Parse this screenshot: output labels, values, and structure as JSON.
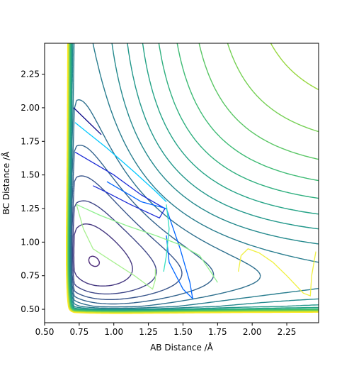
{
  "chart_data": {
    "type": "contour",
    "title": "",
    "xlabel": "AB Distance /Å",
    "ylabel": "BC Distance /Å",
    "xlim": [
      0.5,
      2.48
    ],
    "ylim": [
      0.4,
      2.48
    ],
    "xticks": [
      "0.50",
      "0.75",
      "1.00",
      "1.25",
      "1.50",
      "1.75",
      "2.00",
      "2.25"
    ],
    "xtick_values": [
      0.5,
      0.75,
      1.0,
      1.25,
      1.5,
      1.75,
      2.0,
      2.25
    ],
    "yticks": [
      "0.50",
      "0.75",
      "1.00",
      "1.25",
      "1.50",
      "1.75",
      "2.00",
      "2.25"
    ],
    "ytick_values": [
      0.5,
      0.75,
      1.0,
      1.25,
      1.5,
      1.75,
      2.0,
      2.25
    ],
    "grid": false,
    "colormap": "viridis",
    "surface": {
      "description": "LEPS-like potential energy surface for A + BC",
      "well_r0": 0.74,
      "n_levels": 20
    },
    "trajectories": [
      {
        "color": "#0d0887",
        "points": [
          [
            0.71,
            2.0
          ],
          [
            0.91,
            1.8
          ]
        ]
      },
      {
        "color": "#1b2bd6",
        "points": [
          [
            0.72,
            1.67
          ],
          [
            1.0,
            1.5
          ],
          [
            1.2,
            1.35
          ],
          [
            1.37,
            1.25
          ],
          [
            1.33,
            1.18
          ],
          [
            1.12,
            1.28
          ],
          [
            0.95,
            1.37
          ],
          [
            0.85,
            1.42
          ]
        ]
      },
      {
        "color": "#0066ff",
        "points": [
          [
            0.95,
            1.45
          ],
          [
            1.2,
            1.3
          ],
          [
            1.38,
            1.25
          ],
          [
            1.48,
            0.95
          ],
          [
            1.55,
            0.7
          ],
          [
            1.57,
            0.58
          ],
          [
            1.5,
            0.65
          ],
          [
            1.4,
            0.85
          ],
          [
            1.38,
            1.05
          ]
        ]
      },
      {
        "color": "#00c8ff",
        "points": [
          [
            0.72,
            1.89
          ],
          [
            0.95,
            1.7
          ],
          [
            1.15,
            1.52
          ],
          [
            1.3,
            1.38
          ],
          [
            1.38,
            1.3
          ]
        ]
      },
      {
        "color": "#38e0c0",
        "points": [
          [
            1.38,
            1.28
          ],
          [
            1.4,
            1.1
          ],
          [
            1.38,
            0.9
          ],
          [
            1.36,
            0.78
          ]
        ]
      },
      {
        "color": "#8ff08f",
        "points": [
          [
            0.73,
            1.28
          ],
          [
            0.9,
            1.2
          ],
          [
            1.1,
            1.12
          ],
          [
            1.3,
            1.05
          ],
          [
            1.48,
            0.98
          ],
          [
            1.62,
            0.9
          ],
          [
            1.7,
            0.78
          ],
          [
            1.75,
            0.7
          ]
        ]
      },
      {
        "color": "#a8f090",
        "points": [
          [
            0.73,
            1.28
          ],
          [
            0.78,
            1.1
          ],
          [
            0.85,
            0.95
          ],
          [
            1.0,
            0.85
          ],
          [
            1.15,
            0.75
          ],
          [
            1.28,
            0.65
          ],
          [
            1.3,
            0.72
          ],
          [
            1.3,
            0.8
          ]
        ]
      },
      {
        "color": "#f0f040",
        "points": [
          [
            1.9,
            0.78
          ],
          [
            1.92,
            0.9
          ],
          [
            1.97,
            0.95
          ],
          [
            2.05,
            0.92
          ],
          [
            2.15,
            0.85
          ],
          [
            2.25,
            0.75
          ],
          [
            2.37,
            0.62
          ],
          [
            2.42,
            0.6
          ],
          [
            2.43,
            0.75
          ],
          [
            2.46,
            0.93
          ]
        ]
      }
    ]
  }
}
